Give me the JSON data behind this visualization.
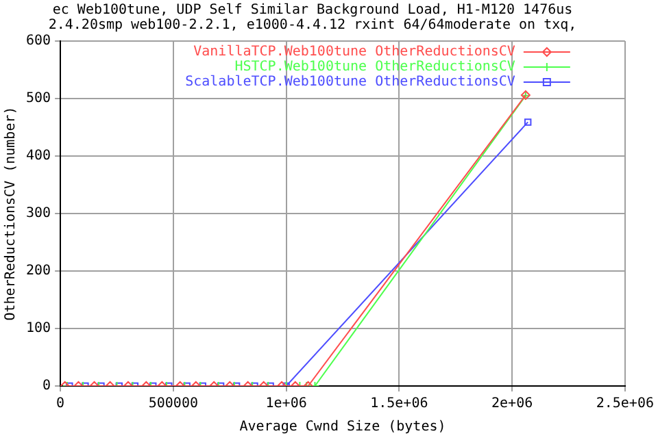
{
  "chart_data": {
    "type": "line",
    "title": "ec Web100tune, UDP Self Similar Background Load, H1-M120 1476us",
    "subtitle": "2.4.20smp web100-2.2.1, e1000-4.4.12 rxint 64/64moderate on txq,",
    "xlabel": "Average Cwnd Size (bytes)",
    "ylabel": "OtherReductionsCV (number)",
    "xlim": [
      0,
      2500000
    ],
    "xticks": [
      0,
      500000,
      {
        "value": 1000000,
        "label": "1e+06"
      },
      {
        "value": 1500000,
        "label": "1.5e+06"
      },
      {
        "value": 2000000,
        "label": "2e+06"
      },
      {
        "value": 2500000,
        "label": "2.5e+06"
      }
    ],
    "ylim": [
      0,
      600
    ],
    "yticks": [
      0,
      100,
      200,
      300,
      400,
      500,
      600
    ],
    "grid": true,
    "legend": "top right",
    "series": [
      {
        "name": "VanillaTCP.Web100tune OtherReductionsCV",
        "color": "#ff4d4d",
        "marker": "diamond",
        "x": [
          20000,
          80000,
          150000,
          220000,
          300000,
          380000,
          450000,
          530000,
          600000,
          680000,
          750000,
          830000,
          900000,
          980000,
          1040000,
          1097000,
          2060000
        ],
        "values": [
          0,
          0,
          0,
          0,
          0,
          0,
          0,
          0,
          0,
          0,
          0,
          0,
          0,
          0,
          0,
          0,
          506
        ]
      },
      {
        "name": "HSTCP.Web100tune OtherReductionsCV",
        "color": "#4dff4d",
        "marker": "cross",
        "x": [
          30000,
          100000,
          170000,
          250000,
          320000,
          400000,
          470000,
          550000,
          620000,
          700000,
          770000,
          850000,
          920000,
          1000000,
          1060000,
          1090000,
          1127000,
          2060000
        ],
        "values": [
          0,
          0,
          0,
          0,
          0,
          0,
          0,
          0,
          0,
          0,
          0,
          0,
          0,
          0,
          0,
          0,
          0,
          505
        ]
      },
      {
        "name": "ScalableTCP.Web100tune OtherReductionsCV",
        "color": "#4d4dff",
        "marker": "square",
        "x": [
          40000,
          110000,
          180000,
          260000,
          330000,
          410000,
          480000,
          560000,
          630000,
          710000,
          780000,
          860000,
          930000,
          1000000,
          2070000
        ],
        "values": [
          0,
          0,
          0,
          0,
          0,
          0,
          0,
          0,
          0,
          0,
          0,
          0,
          0,
          0,
          459
        ]
      }
    ]
  }
}
